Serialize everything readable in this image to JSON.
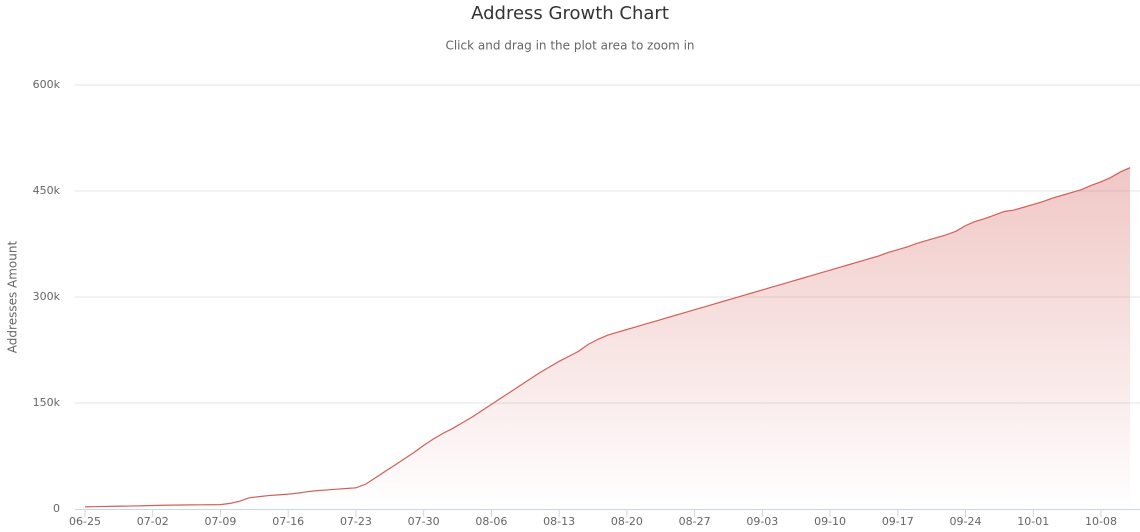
{
  "chart_data": {
    "type": "area",
    "title": "Address Growth Chart",
    "subtitle": "Click and drag in the plot area to zoom in",
    "y_label": "Addresses Amount",
    "color": "#d35f59",
    "grid": true,
    "categories": [
      "06-25",
      null,
      null,
      null,
      null,
      null,
      null,
      "07-02",
      null,
      null,
      null,
      null,
      null,
      null,
      "07-09",
      null,
      null,
      null,
      null,
      null,
      null,
      "07-16",
      null,
      null,
      null,
      null,
      null,
      null,
      "07-23",
      null,
      null,
      null,
      null,
      null,
      null,
      "07-30",
      null,
      null,
      null,
      null,
      null,
      null,
      "08-06",
      null,
      null,
      null,
      null,
      null,
      null,
      "08-13",
      null,
      null,
      null,
      null,
      null,
      null,
      "08-20",
      null,
      null,
      null,
      null,
      null,
      null,
      "08-27",
      null,
      null,
      null,
      null,
      null,
      null,
      "09-03",
      null,
      null,
      null,
      null,
      null,
      null,
      "09-10",
      null,
      null,
      null,
      null,
      null,
      null,
      "09-17",
      null,
      null,
      null,
      null,
      null,
      null,
      "09-24",
      null,
      null,
      null,
      null,
      null,
      null,
      "10-01",
      null,
      null,
      null,
      null,
      null,
      null,
      "10-08",
      null,
      null,
      null
    ],
    "values": [
      3000,
      3300,
      3600,
      3900,
      4100,
      4300,
      4600,
      5000,
      5300,
      5500,
      5700,
      5800,
      5900,
      6000,
      6200,
      8000,
      11000,
      16000,
      17500,
      19000,
      20000,
      21000,
      22500,
      24500,
      26000,
      27000,
      28000,
      29000,
      30000,
      35000,
      44000,
      53000,
      62000,
      71000,
      80000,
      90000,
      99000,
      107000,
      114000,
      122000,
      130000,
      139000,
      148000,
      157000,
      166000,
      175000,
      184000,
      193000,
      201000,
      209000,
      216000,
      223000,
      233000,
      240000,
      246000,
      250000,
      254000,
      258000,
      262000,
      266000,
      270000,
      274000,
      278000,
      282000,
      286000,
      290000,
      294000,
      298000,
      302000,
      306000,
      310000,
      314000,
      318000,
      322000,
      326000,
      330000,
      334000,
      338000,
      342000,
      346000,
      350000,
      354000,
      358000,
      363000,
      367000,
      371000,
      376000,
      380000,
      384000,
      388000,
      393000,
      401000,
      407000,
      411000,
      416000,
      421000,
      423000,
      427000,
      431000,
      435000,
      440000,
      444000,
      448000,
      452000,
      458000,
      463000,
      469000,
      477000,
      483000
    ],
    "ylim": [
      0,
      600000
    ],
    "yticks": [
      {
        "value": 0,
        "label": "0"
      },
      {
        "value": 150000,
        "label": "150k"
      },
      {
        "value": 300000,
        "label": "300k"
      },
      {
        "value": 450000,
        "label": "450k"
      },
      {
        "value": 600000,
        "label": "600k"
      }
    ]
  }
}
